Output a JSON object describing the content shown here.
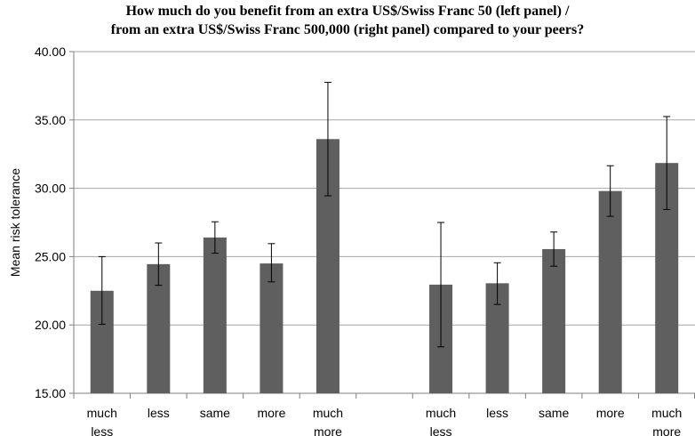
{
  "chart_data": {
    "type": "bar",
    "title": [
      "How much do you benefit from an extra US$/Swiss Franc 50 (left panel) /",
      "from an extra US$/Swiss Franc 500,000 (right panel) compared to your peers?"
    ],
    "xlabel": "",
    "ylabel": "Mean risk tolerance",
    "ylim": [
      15,
      40
    ],
    "yticks": [
      "15.00",
      "20.00",
      "25.00",
      "30.00",
      "35.00",
      "40.00"
    ],
    "grid": true,
    "legend": "none",
    "bar_color": "#5f5f5f",
    "categories": [
      [
        "much",
        "less"
      ],
      [
        "less"
      ],
      [
        "same"
      ],
      [
        "more"
      ],
      [
        "much",
        "more"
      ],
      [
        ""
      ],
      [
        "much",
        "less"
      ],
      [
        "less"
      ],
      [
        "same"
      ],
      [
        "more"
      ],
      [
        "much",
        "more"
      ]
    ],
    "values": [
      22.5,
      24.45,
      26.4,
      24.5,
      33.6,
      null,
      22.95,
      23.05,
      25.55,
      29.8,
      31.85
    ],
    "err_low": [
      20.05,
      22.9,
      25.25,
      23.15,
      29.45,
      null,
      18.4,
      21.5,
      24.3,
      27.95,
      28.45
    ],
    "err_high": [
      25.0,
      26.0,
      27.55,
      25.95,
      37.75,
      null,
      27.5,
      24.55,
      26.8,
      31.65,
      35.25
    ]
  }
}
